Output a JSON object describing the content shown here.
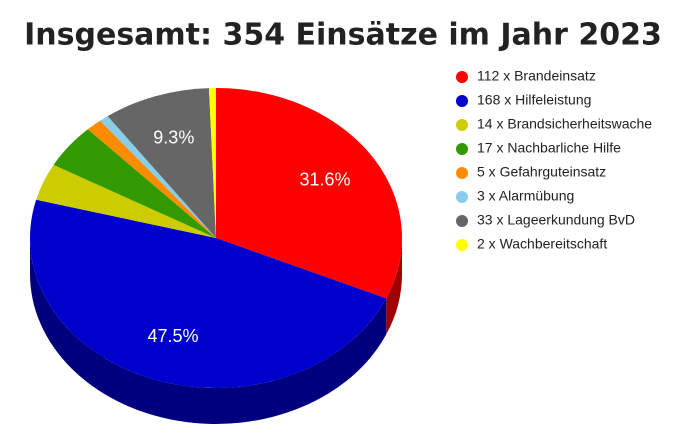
{
  "chart_data": {
    "type": "pie3d",
    "title": "Insgesamt: 354 Einsätze im Jahr 2023",
    "categories": [
      "112 x Brandeinsatz",
      "168 x Hilfeleistung",
      "14 x Brandsicherheitswache",
      "17 x Nachbarliche Hilfe",
      "5 x Gefahrguteinsatz",
      "3 x Alarmübung",
      "33 x Lageerkundung BvD",
      "2 x Wachbereitschaft"
    ],
    "values": [
      31.6,
      47.5,
      4.0,
      4.8,
      1.4,
      0.8,
      9.3,
      0.6
    ],
    "value_labels": [
      "31.6%",
      "47.5%",
      null,
      null,
      null,
      null,
      "9.3%",
      null
    ],
    "colors": [
      "#ff0000",
      "#0000cc",
      "#cccc00",
      "#339900",
      "#ff8c00",
      "#87ceeb",
      "#666666",
      "#ffff00"
    ],
    "legend": "right"
  }
}
